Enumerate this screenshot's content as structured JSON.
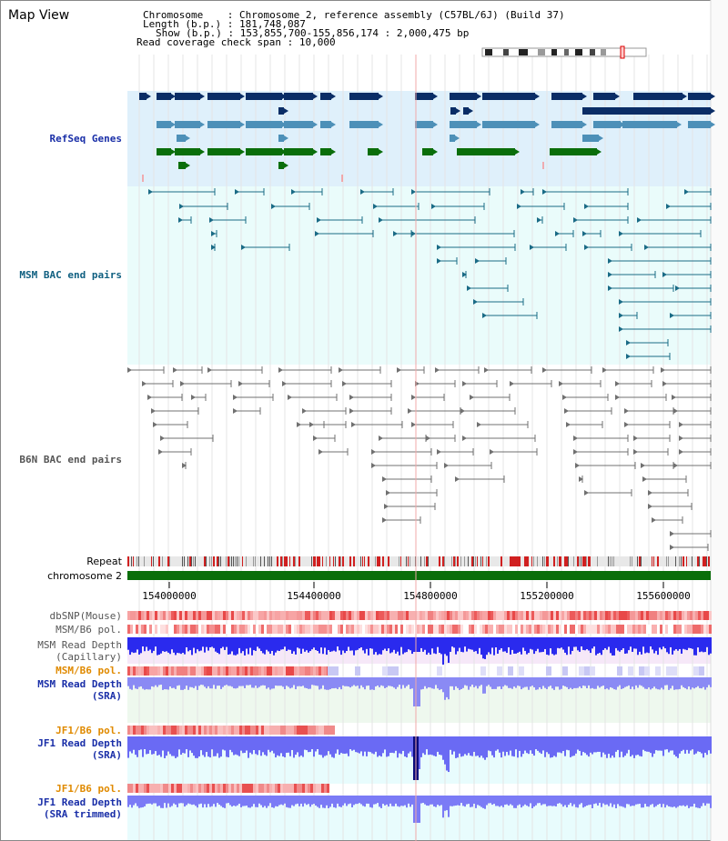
{
  "title": "Map View",
  "info": {
    "chromosome_key": "Chromosome",
    "chromosome_value": "Chromosome 2, reference assembly (C57BL/6J) (Build 37)",
    "length_key": "Length (b.p.)",
    "length_value": "181,748,087",
    "show_key": "Show (b.p.)",
    "show_value": "153,855,700-155,856,174 : 2,000,475 bp",
    "coverage_key": "Read coverage check span",
    "coverage_value": "10,000"
  },
  "tracks": {
    "refseq": "RefSeq Genes",
    "msm_bac": "MSM BAC end pairs",
    "b6n_bac": "B6N BAC end pairs",
    "repeat": "Repeat",
    "chromosome": "chromosome 2",
    "dbsnp": "dbSNP(Mouse)",
    "msm_b6_pol": "MSM/B6 pol.",
    "msm_depth_cap_1": "MSM Read Depth",
    "msm_depth_cap_2": "(Capillary)",
    "msm_b6_pol2": "MSM/B6 pol.",
    "msm_depth_sra_1": "MSM Read Depth",
    "msm_depth_sra_2": "(SRA)",
    "jf1_b6_pol": "JF1/B6 pol.",
    "jf1_depth_sra_1": "JF1 Read Depth",
    "jf1_depth_sra_2": "(SRA)",
    "jf1_b6_pol2": "JF1/B6 pol.",
    "jf1_depth_trim_1": "JF1 Read Depth",
    "jf1_depth_trim_2": "(SRA trimmed)"
  },
  "axis_ticks": [
    "154000000",
    "154400000",
    "154800000",
    "155200000",
    "155600000"
  ],
  "colors": {
    "refseq_bg": "#dff0fb",
    "msm_bg": "#eafcfb",
    "gene_navy": "#0a2d66",
    "gene_steel": "#4d90b8",
    "gene_green": "#0a6e0a",
    "msm_pair": "#1a6b86",
    "b6n_pair": "#707070",
    "chromosome_bar": "#0a6e0a",
    "depth_blue": "#3a3aee",
    "depth_light": "#7b7bf6",
    "label_blue": "#1a2fa8",
    "label_teal": "#0f5f80",
    "label_gray": "#555555",
    "label_orange": "#e08a00"
  }
}
